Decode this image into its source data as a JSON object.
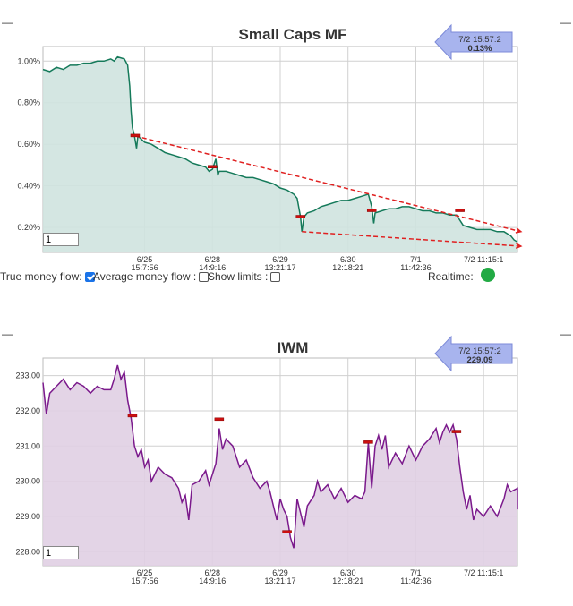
{
  "charts": [
    {
      "title": "Small Caps MF",
      "badge": {
        "time": "7/2 15:57:2",
        "value": "0.13%"
      },
      "input_value": "1"
    },
    {
      "title": "IWM",
      "badge": {
        "time": "7/2 15:57:2",
        "value": "229.09"
      },
      "input_value": "1"
    }
  ],
  "controls": {
    "true_money_flow": "True money flow:",
    "true_money_flow_checked": true,
    "average_money_flow": "Average money flow :",
    "average_money_flow_checked": false,
    "show_limits": "Show limits :",
    "show_limits_checked": false,
    "realtime": "Realtime:",
    "realtime_color": "#22aa44"
  },
  "chart_data": [
    {
      "type": "area",
      "title": "Small Caps MF",
      "color": "#157a5a",
      "fill": "#cfe3df",
      "y_ticks": [
        "0.20%",
        "0.40%",
        "0.60%",
        "0.80%",
        "1.00%"
      ],
      "ylim": [
        0.08,
        1.07
      ],
      "x_ticks": [
        {
          "x": 1.5,
          "l1": "6/25",
          "l2": "15:7:56"
        },
        {
          "x": 2.5,
          "l1": "6/28",
          "l2": "14:9:16"
        },
        {
          "x": 3.5,
          "l1": "6/29",
          "l2": "13:21:17"
        },
        {
          "x": 4.5,
          "l1": "6/30",
          "l2": "12:18:21"
        },
        {
          "x": 5.5,
          "l1": "7/1",
          "l2": "11:42:36"
        },
        {
          "x": 6.5,
          "l1": "7/2 11:15:1",
          "l2": ""
        }
      ],
      "xlim": [
        0,
        7.0
      ],
      "series": [
        {
          "values": [
            [
              0,
              0.96
            ],
            [
              0.1,
              0.95
            ],
            [
              0.2,
              0.97
            ],
            [
              0.3,
              0.96
            ],
            [
              0.4,
              0.98
            ],
            [
              0.5,
              0.98
            ],
            [
              0.6,
              0.99
            ],
            [
              0.7,
              0.99
            ],
            [
              0.8,
              1.0
            ],
            [
              0.9,
              1.0
            ],
            [
              1.0,
              1.01
            ],
            [
              1.05,
              1.0
            ],
            [
              1.1,
              1.02
            ],
            [
              1.2,
              1.01
            ],
            [
              1.25,
              0.98
            ],
            [
              1.28,
              0.88
            ],
            [
              1.3,
              0.76
            ],
            [
              1.32,
              0.68
            ],
            [
              1.35,
              0.64
            ],
            [
              1.38,
              0.58
            ],
            [
              1.4,
              0.64
            ],
            [
              1.5,
              0.61
            ],
            [
              1.6,
              0.6
            ],
            [
              1.7,
              0.58
            ],
            [
              1.8,
              0.56
            ],
            [
              1.9,
              0.55
            ],
            [
              2.0,
              0.54
            ],
            [
              2.1,
              0.53
            ],
            [
              2.2,
              0.51
            ],
            [
              2.3,
              0.5
            ],
            [
              2.4,
              0.49
            ],
            [
              2.45,
              0.47
            ],
            [
              2.5,
              0.48
            ],
            [
              2.55,
              0.53
            ],
            [
              2.58,
              0.45
            ],
            [
              2.6,
              0.47
            ],
            [
              2.7,
              0.47
            ],
            [
              2.8,
              0.46
            ],
            [
              2.9,
              0.45
            ],
            [
              3.0,
              0.44
            ],
            [
              3.1,
              0.44
            ],
            [
              3.2,
              0.43
            ],
            [
              3.3,
              0.42
            ],
            [
              3.4,
              0.41
            ],
            [
              3.5,
              0.39
            ],
            [
              3.6,
              0.38
            ],
            [
              3.7,
              0.36
            ],
            [
              3.75,
              0.34
            ],
            [
              3.8,
              0.25
            ],
            [
              3.82,
              0.18
            ],
            [
              3.85,
              0.25
            ],
            [
              3.9,
              0.27
            ],
            [
              4.0,
              0.28
            ],
            [
              4.1,
              0.3
            ],
            [
              4.2,
              0.31
            ],
            [
              4.3,
              0.32
            ],
            [
              4.4,
              0.33
            ],
            [
              4.5,
              0.33
            ],
            [
              4.6,
              0.34
            ],
            [
              4.7,
              0.35
            ],
            [
              4.8,
              0.36
            ],
            [
              4.85,
              0.3
            ],
            [
              4.88,
              0.22
            ],
            [
              4.9,
              0.27
            ],
            [
              5.0,
              0.28
            ],
            [
              5.1,
              0.29
            ],
            [
              5.2,
              0.29
            ],
            [
              5.3,
              0.3
            ],
            [
              5.4,
              0.3
            ],
            [
              5.5,
              0.29
            ],
            [
              5.6,
              0.28
            ],
            [
              5.7,
              0.28
            ],
            [
              5.8,
              0.27
            ],
            [
              5.9,
              0.27
            ],
            [
              6.0,
              0.26
            ],
            [
              6.1,
              0.26
            ],
            [
              6.2,
              0.21
            ],
            [
              6.3,
              0.2
            ],
            [
              6.4,
              0.19
            ],
            [
              6.5,
              0.19
            ],
            [
              6.6,
              0.19
            ],
            [
              6.7,
              0.18
            ],
            [
              6.8,
              0.18
            ],
            [
              6.9,
              0.16
            ],
            [
              6.95,
              0.14
            ],
            [
              7.0,
              0.13
            ]
          ]
        }
      ],
      "markers": [
        [
          1.36,
          0.64
        ],
        [
          2.5,
          0.49
        ],
        [
          3.8,
          0.25
        ],
        [
          4.85,
          0.28
        ],
        [
          6.15,
          0.28
        ]
      ],
      "trendlines": [
        [
          [
            1.36,
            0.64
          ],
          [
            7.05,
            0.18
          ]
        ],
        [
          [
            3.82,
            0.18
          ],
          [
            7.05,
            0.11
          ]
        ]
      ]
    },
    {
      "type": "area",
      "title": "IWM",
      "color": "#7b1a8c",
      "fill": "#e0cfe3",
      "y_ticks": [
        "228.00",
        "229.00",
        "230.00",
        "231.00",
        "232.00",
        "233.00"
      ],
      "ylim": [
        227.6,
        233.5
      ],
      "x_ticks": [
        {
          "x": 1.5,
          "l1": "6/25",
          "l2": "15:7:56"
        },
        {
          "x": 2.5,
          "l1": "6/28",
          "l2": "14:9:16"
        },
        {
          "x": 3.5,
          "l1": "6/29",
          "l2": "13:21:17"
        },
        {
          "x": 4.5,
          "l1": "6/30",
          "l2": "12:18:21"
        },
        {
          "x": 5.5,
          "l1": "7/1",
          "l2": "11:42:36"
        },
        {
          "x": 6.5,
          "l1": "7/2 11:15:1",
          "l2": ""
        }
      ],
      "xlim": [
        0,
        7.0
      ],
      "series": [
        {
          "values": [
            [
              0,
              232.8
            ],
            [
              0.05,
              231.9
            ],
            [
              0.1,
              232.5
            ],
            [
              0.2,
              232.7
            ],
            [
              0.3,
              232.9
            ],
            [
              0.4,
              232.6
            ],
            [
              0.5,
              232.8
            ],
            [
              0.6,
              232.7
            ],
            [
              0.7,
              232.5
            ],
            [
              0.8,
              232.7
            ],
            [
              0.9,
              232.6
            ],
            [
              1.0,
              232.6
            ],
            [
              1.05,
              232.9
            ],
            [
              1.1,
              233.3
            ],
            [
              1.15,
              232.9
            ],
            [
              1.2,
              233.1
            ],
            [
              1.25,
              232.3
            ],
            [
              1.3,
              231.8
            ],
            [
              1.35,
              231.0
            ],
            [
              1.4,
              230.7
            ],
            [
              1.45,
              230.9
            ],
            [
              1.5,
              230.4
            ],
            [
              1.55,
              230.6
            ],
            [
              1.6,
              230.0
            ],
            [
              1.7,
              230.4
            ],
            [
              1.8,
              230.2
            ],
            [
              1.9,
              230.1
            ],
            [
              2.0,
              229.8
            ],
            [
              2.05,
              229.4
            ],
            [
              2.1,
              229.6
            ],
            [
              2.15,
              228.9
            ],
            [
              2.2,
              229.9
            ],
            [
              2.3,
              230.0
            ],
            [
              2.4,
              230.3
            ],
            [
              2.45,
              229.9
            ],
            [
              2.5,
              230.2
            ],
            [
              2.55,
              230.5
            ],
            [
              2.6,
              231.5
            ],
            [
              2.65,
              230.9
            ],
            [
              2.7,
              231.2
            ],
            [
              2.8,
              231.0
            ],
            [
              2.9,
              230.4
            ],
            [
              3.0,
              230.6
            ],
            [
              3.1,
              230.1
            ],
            [
              3.2,
              229.8
            ],
            [
              3.3,
              230.0
            ],
            [
              3.35,
              229.7
            ],
            [
              3.4,
              229.3
            ],
            [
              3.45,
              228.9
            ],
            [
              3.5,
              229.5
            ],
            [
              3.55,
              229.2
            ],
            [
              3.6,
              229.0
            ],
            [
              3.65,
              228.4
            ],
            [
              3.7,
              228.1
            ],
            [
              3.75,
              229.5
            ],
            [
              3.8,
              229.1
            ],
            [
              3.85,
              228.7
            ],
            [
              3.9,
              229.3
            ],
            [
              4.0,
              229.6
            ],
            [
              4.05,
              230.0
            ],
            [
              4.1,
              229.7
            ],
            [
              4.2,
              229.9
            ],
            [
              4.3,
              229.5
            ],
            [
              4.4,
              229.8
            ],
            [
              4.5,
              229.4
            ],
            [
              4.6,
              229.6
            ],
            [
              4.7,
              229.5
            ],
            [
              4.75,
              229.7
            ],
            [
              4.8,
              231.1
            ],
            [
              4.85,
              229.8
            ],
            [
              4.9,
              231.0
            ],
            [
              4.95,
              231.3
            ],
            [
              5.0,
              230.9
            ],
            [
              5.05,
              231.3
            ],
            [
              5.1,
              230.4
            ],
            [
              5.2,
              230.8
            ],
            [
              5.3,
              230.5
            ],
            [
              5.4,
              231.0
            ],
            [
              5.5,
              230.6
            ],
            [
              5.6,
              231.0
            ],
            [
              5.7,
              231.2
            ],
            [
              5.8,
              231.5
            ],
            [
              5.85,
              231.1
            ],
            [
              5.9,
              231.4
            ],
            [
              5.95,
              231.6
            ],
            [
              6.0,
              231.4
            ],
            [
              6.05,
              231.6
            ],
            [
              6.1,
              231.2
            ],
            [
              6.15,
              230.4
            ],
            [
              6.2,
              229.7
            ],
            [
              6.25,
              229.2
            ],
            [
              6.3,
              229.6
            ],
            [
              6.35,
              228.9
            ],
            [
              6.4,
              229.2
            ],
            [
              6.5,
              229.0
            ],
            [
              6.6,
              229.3
            ],
            [
              6.7,
              229.0
            ],
            [
              6.8,
              229.5
            ],
            [
              6.85,
              229.9
            ],
            [
              6.9,
              229.7
            ],
            [
              7.0,
              229.8
            ],
            [
              7.05,
              229.6
            ],
            [
              7.1,
              229.2
            ]
          ]
        }
      ],
      "markers": [
        [
          1.32,
          231.85
        ],
        [
          2.6,
          231.75
        ],
        [
          3.6,
          228.55
        ],
        [
          4.8,
          231.1
        ],
        [
          6.1,
          231.4
        ]
      ]
    }
  ]
}
